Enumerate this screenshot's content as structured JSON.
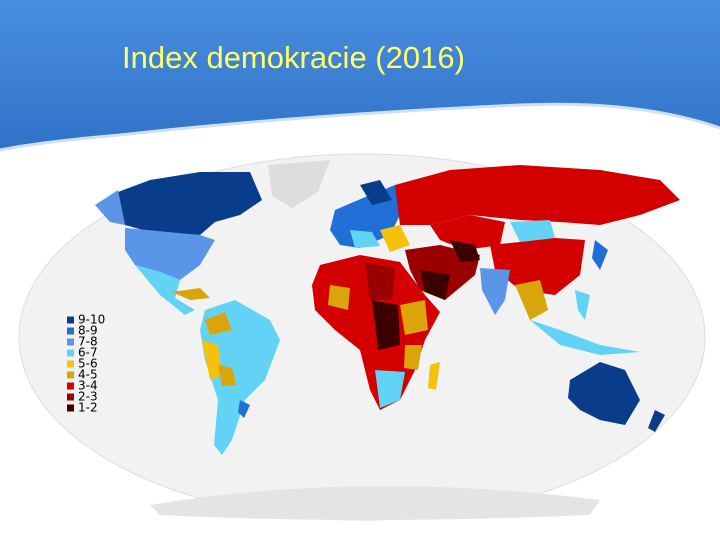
{
  "title": "Index demokracie (2016)",
  "legend": {
    "items": [
      {
        "label": "9-10",
        "color": "#0a3c8c"
      },
      {
        "label": "8-9",
        "color": "#1f6fd6"
      },
      {
        "label": "7-8",
        "color": "#5b95e8"
      },
      {
        "label": "6-7",
        "color": "#62d3f5"
      },
      {
        "label": "5-6",
        "color": "#f4c20d"
      },
      {
        "label": "4-5",
        "color": "#d9a50a"
      },
      {
        "label": "3-4",
        "color": "#d40000"
      },
      {
        "label": "2-3",
        "color": "#9a0000"
      },
      {
        "label": "1-2",
        "color": "#3d0000"
      }
    ]
  }
}
